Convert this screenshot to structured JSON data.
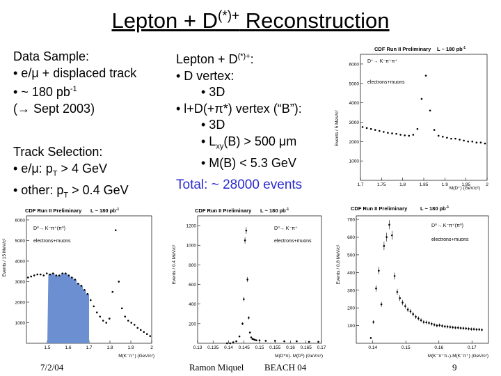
{
  "slide": {
    "title_main": "Lepton + D",
    "title_sup": "(*)+",
    "title_tail": " Reconstruction",
    "date": "7/2/04",
    "author": "Ramon Miquel",
    "event": "BEACH 04",
    "page_number": "9"
  },
  "left_text": {
    "data_sample_heading": "Data Sample:",
    "bullet1": "• e/μ + displaced track",
    "bullet2_pre": "• ~ 180 pb",
    "bullet2_sup": "-1",
    "bullet3": "(→ Sept 2003)",
    "track_heading": "Track Selection:",
    "track1_pre": "• e/μ: p",
    "track1_sub": "T",
    "track1_post": " > 4 GeV",
    "track2_pre": "• other: p",
    "track2_sub": "T",
    "track2_post": " > 0.4 GeV"
  },
  "middle_text": {
    "heading_pre": "Lepton + D",
    "heading_sup": "(*)+",
    "heading_post": ":",
    "b1": "• D vertex:",
    "b1a": "• 3D",
    "b2": "• l+D(+π*) vertex (“B”):",
    "b2a": "• 3D",
    "b2b_pre": "• L",
    "b2b_sub": "xy",
    "b2b_post": "(B) > 500 μm",
    "b2c": "• M(B) < 5.3 GeV",
    "total": "Total: ~ 28000 events"
  },
  "plots": {
    "top_right": {
      "header": "CDF Run II Preliminary",
      "lumi": "L ~ 180 pb",
      "lumi_sup": "-1",
      "decay": "D⁺→ K⁻π⁺π⁺",
      "sample": "electrons+muons",
      "ylabel": "Events / 5 MeV/c²",
      "xlabel": "M(D⁺) (GeV/c²)",
      "yticks": [
        "1000",
        "2000",
        "3000",
        "4000",
        "5000",
        "6000"
      ],
      "xticks": [
        "1.7",
        "1.75",
        "1.8",
        "1.85",
        "1.9",
        "1.95",
        "2"
      ]
    },
    "bottom_left": {
      "header": "CDF Run II Preliminary",
      "lumi": "L ~ 180 pb",
      "lumi_sup": "-1",
      "decay": "D⁰→ K⁻π⁺(π⁰)",
      "sample": "electrons+muons",
      "ylabel": "Events / 15 MeV/c²",
      "xlabel": "M(K⁻π⁺) (GeV/c²)",
      "yticks": [
        "1000",
        "2000",
        "3000",
        "4000",
        "5000",
        "6000"
      ],
      "xticks": [
        "1.5",
        "1.6",
        "1.7",
        "1.8",
        "1.9",
        "2"
      ]
    },
    "bottom_middle": {
      "header": "CDF Run II Preliminary",
      "lumi": "L ~ 180 pb",
      "lumi_sup": "-1",
      "decay": "D⁰→ K⁻π⁺",
      "sample": "electrons+muons",
      "ylabel": "Events / 0.4 MeV/c²",
      "xlabel": "M(D*π)- M(D⁰) (GeV/c²)",
      "yticks": [
        "200",
        "400",
        "600",
        "800",
        "1000",
        "1200"
      ],
      "xticks": [
        "0.13",
        "0.135",
        "0.14",
        "0.145",
        "0.15",
        "0.155",
        "0.16",
        "0.165",
        "0.17"
      ]
    },
    "bottom_right": {
      "header": "CDF Run II Preliminary",
      "lumi": "L ~ 180 pb",
      "lumi_sup": "-1",
      "decay": "D⁰→ K⁻π⁺(π⁰)",
      "sample": "electrons+muons",
      "ylabel": "Events / 0.8 MeV/c²",
      "xlabel": "M(K⁻π⁺π₊)-M(K⁻π⁺) (GeV/c²)",
      "yticks": [
        "100",
        "200",
        "300",
        "400",
        "500",
        "600",
        "700"
      ],
      "xticks": [
        "0.14",
        "0.15",
        "0.16",
        "0.17"
      ]
    }
  },
  "chart_data": [
    {
      "type": "scatter",
      "title": "D+ → K-π+π+ mass",
      "xlabel": "M(D+) (GeV/c²)",
      "ylabel": "Events / 5 MeV/c²",
      "xlim": [
        1.7,
        2.0
      ],
      "ylim": [
        0,
        6500
      ],
      "x": [
        1.705,
        1.715,
        1.725,
        1.735,
        1.745,
        1.755,
        1.765,
        1.775,
        1.785,
        1.795,
        1.805,
        1.815,
        1.825,
        1.835,
        1.845,
        1.855,
        1.865,
        1.875,
        1.885,
        1.895,
        1.905,
        1.915,
        1.925,
        1.935,
        1.945,
        1.955,
        1.965,
        1.975,
        1.985,
        1.995
      ],
      "y": [
        2750,
        2700,
        2650,
        2600,
        2550,
        2500,
        2450,
        2420,
        2400,
        2350,
        2320,
        2300,
        2350,
        2650,
        4200,
        5400,
        3600,
        2600,
        2300,
        2250,
        2200,
        2150,
        2150,
        2100,
        2050,
        2000,
        2000,
        1950,
        1950,
        1900
      ]
    },
    {
      "type": "area",
      "title": "D0 → K-π+(π0) mass",
      "xlabel": "M(K-π+) (GeV/c²)",
      "ylabel": "Events / 15 MeV/c²",
      "xlim": [
        1.4,
        2.0
      ],
      "ylim": [
        0,
        6200
      ],
      "x": [
        1.4075,
        1.4225,
        1.4375,
        1.4525,
        1.4675,
        1.4825,
        1.4975,
        1.5125,
        1.5275,
        1.5425,
        1.5575,
        1.5725,
        1.5875,
        1.6025,
        1.6175,
        1.6325,
        1.6475,
        1.6625,
        1.6775,
        1.6925,
        1.7075,
        1.7225,
        1.7375,
        1.7525,
        1.7675,
        1.7825,
        1.7975,
        1.8125,
        1.8275,
        1.8425,
        1.8575,
        1.8725,
        1.8875,
        1.9025,
        1.9175,
        1.9325,
        1.9475,
        1.9625,
        1.9775,
        1.9925
      ],
      "y": [
        3200,
        3250,
        3300,
        3350,
        3350,
        3300,
        3400,
        3350,
        3400,
        3300,
        3300,
        3400,
        3400,
        3300,
        3200,
        3100,
        2900,
        2800,
        2600,
        2400,
        2100,
        1800,
        1500,
        1300,
        1100,
        1000,
        1200,
        2500,
        5500,
        3000,
        1700,
        1300,
        1100,
        1000,
        900,
        750,
        650,
        550,
        450,
        350
      ],
      "shaded_range": [
        1.5,
        1.7
      ]
    },
    {
      "type": "scatter",
      "title": "M(D*π) - M(D0)",
      "xlabel": "M(D*π)- M(D0) (GeV/c²)",
      "ylabel": "Events / 0.4 MeV/c²",
      "xlim": [
        0.13,
        0.17
      ],
      "ylim": [
        0,
        1300
      ],
      "x": [
        0.1395,
        0.1405,
        0.1415,
        0.1425,
        0.1435,
        0.1445,
        0.1449,
        0.1453,
        0.1457,
        0.1461,
        0.1465,
        0.1469,
        0.1473,
        0.1477,
        0.1481,
        0.1485,
        0.149,
        0.15,
        0.152,
        0.155,
        0.158,
        0.162,
        0.166,
        0.169
      ],
      "y": [
        0,
        0,
        10,
        20,
        70,
        200,
        450,
        1050,
        1150,
        650,
        260,
        110,
        60,
        45,
        40,
        35,
        30,
        30,
        25,
        25,
        20,
        20,
        15,
        15
      ]
    },
    {
      "type": "scatter",
      "title": "M(K-π+π+)-M(K-π+)",
      "xlabel": "M(K-π+π+)-M(K-π+) (GeV/c²)",
      "ylabel": "Events / 0.8 MeV/c²",
      "xlim": [
        0.135,
        0.175
      ],
      "ylim": [
        0,
        720
      ],
      "x": [
        0.1394,
        0.1402,
        0.141,
        0.1418,
        0.1426,
        0.1434,
        0.1442,
        0.145,
        0.1458,
        0.1466,
        0.1474,
        0.1482,
        0.149,
        0.1498,
        0.1506,
        0.1514,
        0.1522,
        0.153,
        0.1538,
        0.1546,
        0.1554,
        0.1562,
        0.157,
        0.1578,
        0.1586,
        0.1594,
        0.1602,
        0.161,
        0.1618,
        0.1626,
        0.1634,
        0.1642,
        0.165,
        0.1658,
        0.1666,
        0.1674,
        0.1682,
        0.169,
        0.1698,
        0.1706,
        0.1714,
        0.1722,
        0.173
      ],
      "y": [
        30,
        120,
        310,
        410,
        220,
        550,
        600,
        670,
        610,
        380,
        290,
        255,
        230,
        210,
        190,
        180,
        165,
        150,
        140,
        130,
        120,
        118,
        115,
        110,
        105,
        100,
        102,
        98,
        95,
        94,
        92,
        90,
        88,
        88,
        86,
        85,
        84,
        82,
        80,
        80,
        78,
        78,
        76
      ]
    }
  ]
}
